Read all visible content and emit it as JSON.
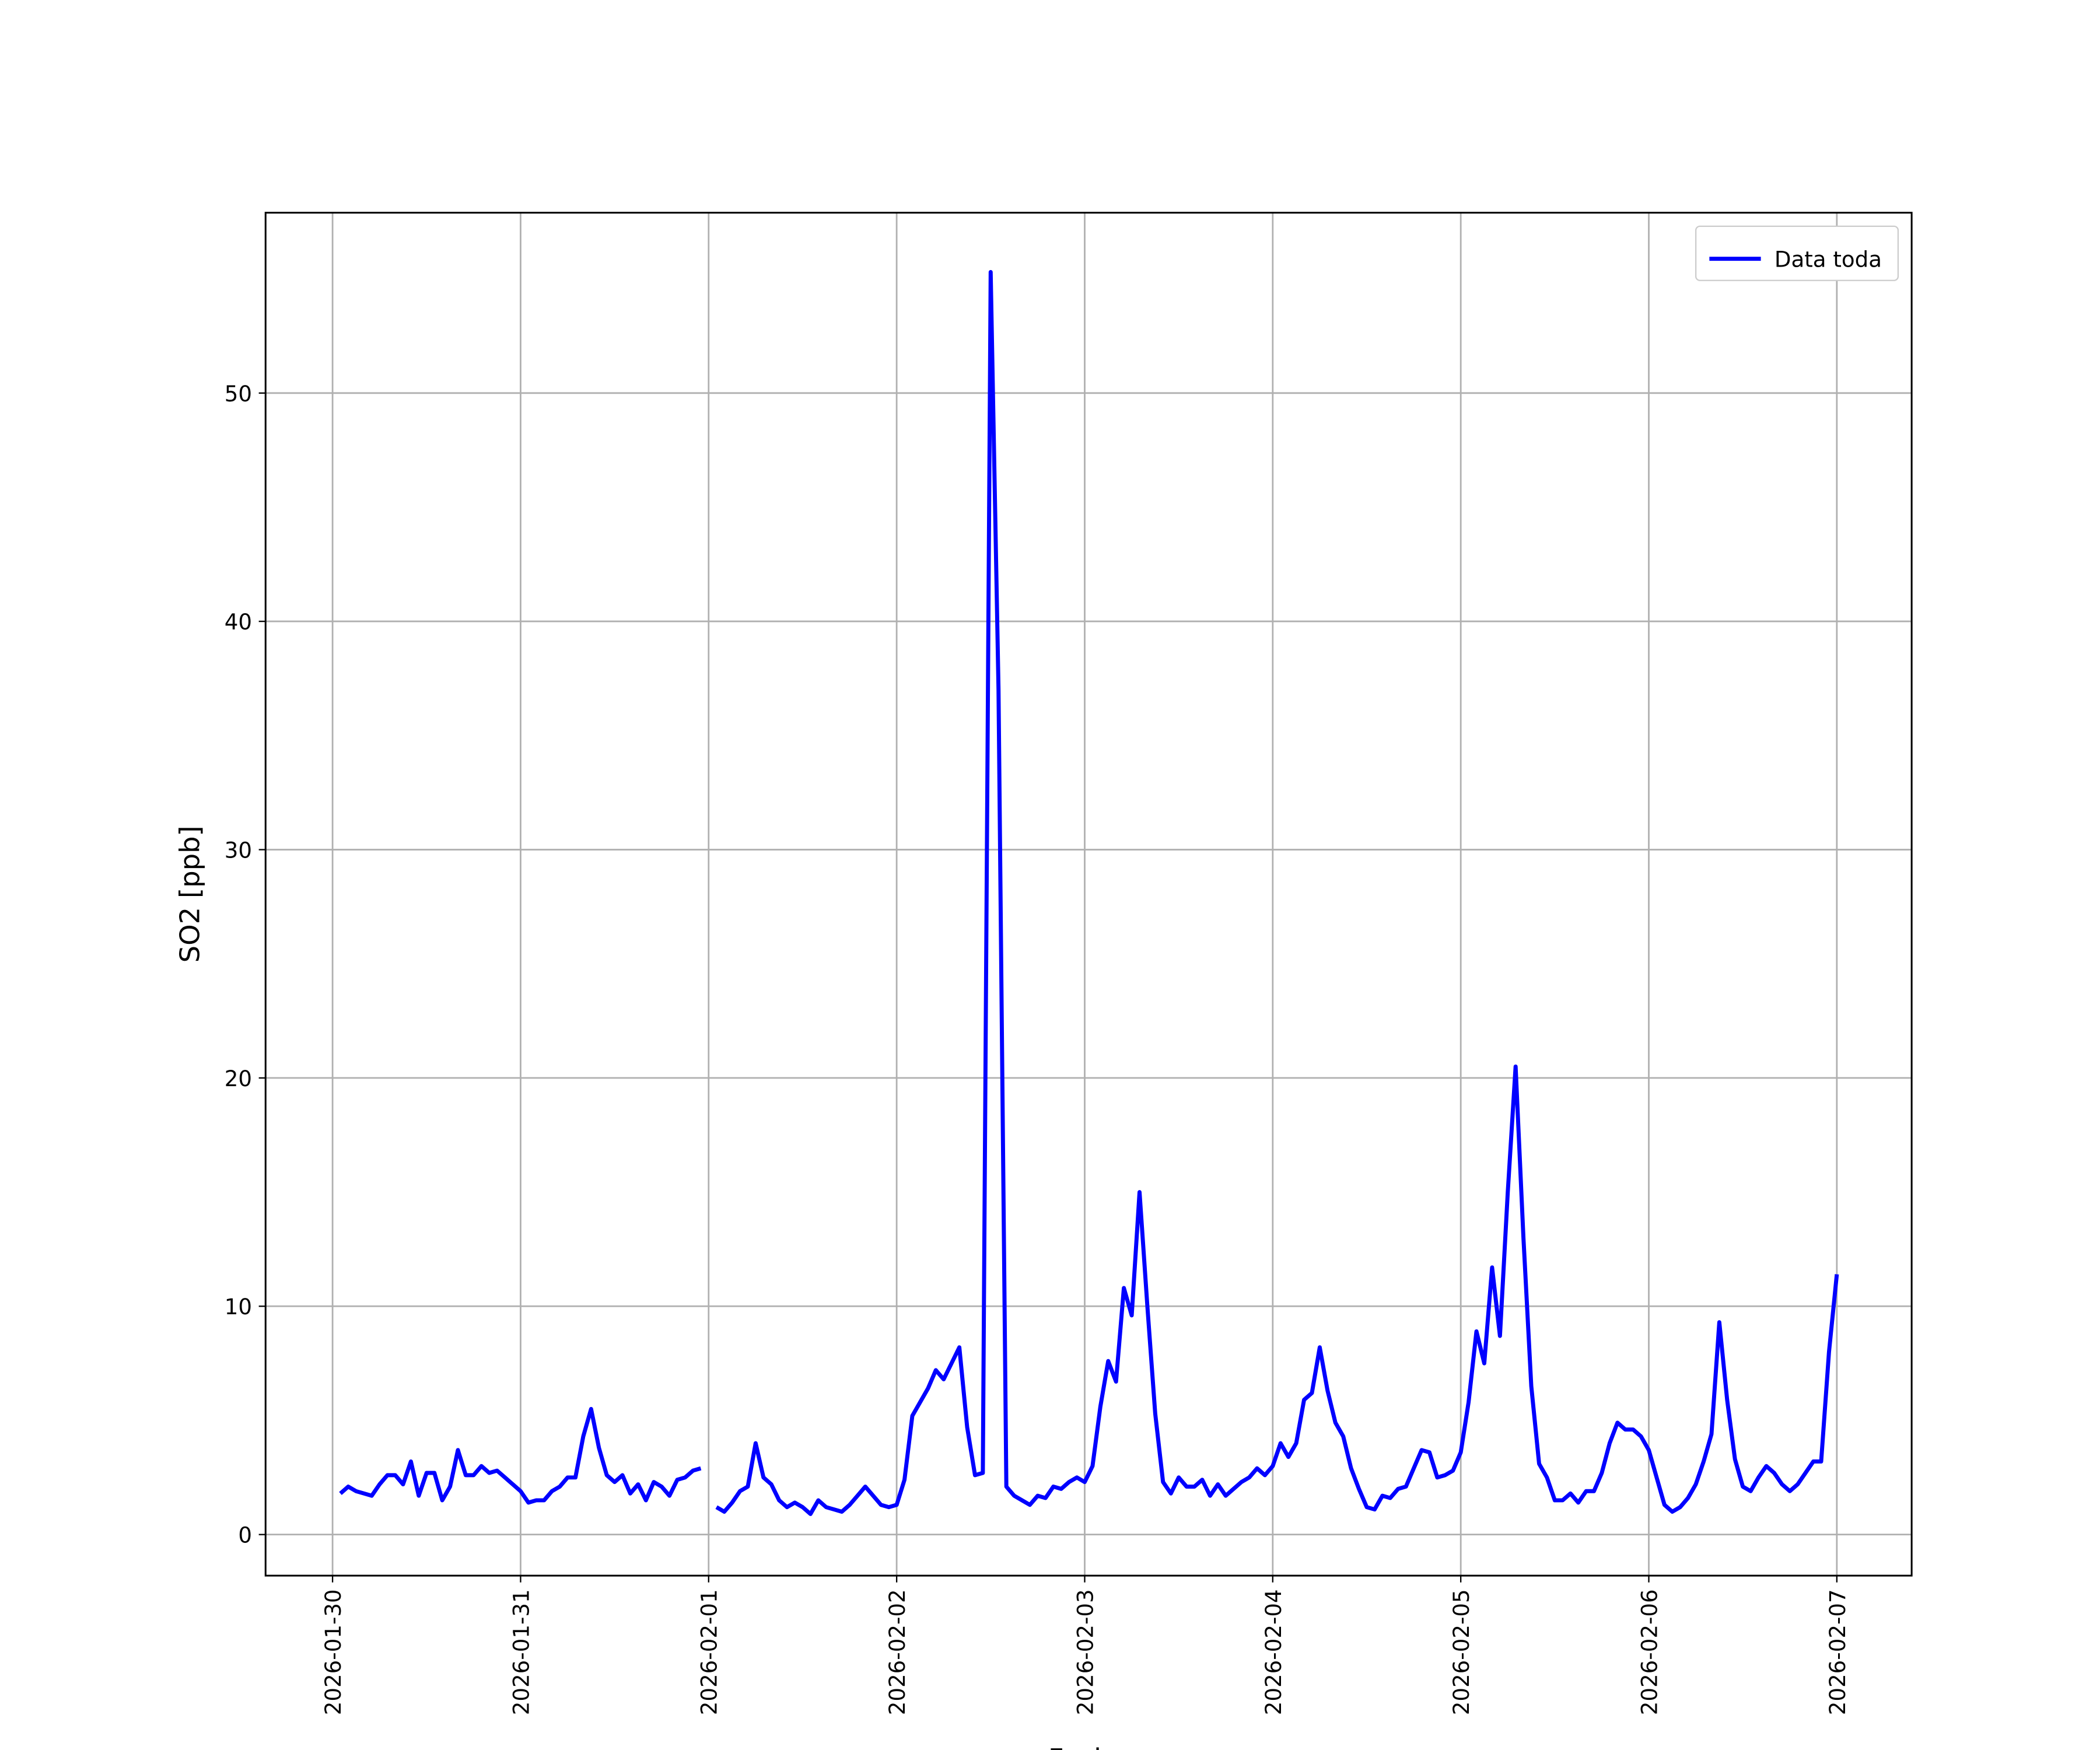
{
  "chart_data": {
    "type": "line",
    "xlabel": "Fecha",
    "ylabel": "SO2 [ppb]",
    "x": [
      "2026-01-30 01:00",
      "2026-01-30 02:00",
      "2026-01-30 03:00",
      "2026-01-30 04:00",
      "2026-01-30 05:00",
      "2026-01-30 06:00",
      "2026-01-30 07:00",
      "2026-01-30 08:00",
      "2026-01-30 09:00",
      "2026-01-30 10:00",
      "2026-01-30 11:00",
      "2026-01-30 12:00",
      "2026-01-30 13:00",
      "2026-01-30 14:00",
      "2026-01-30 15:00",
      "2026-01-30 16:00",
      "2026-01-30 17:00",
      "2026-01-30 18:00",
      "2026-01-30 19:00",
      "2026-01-30 20:00",
      "2026-01-30 21:00",
      "2026-01-30 22:00",
      "2026-01-30 23:00",
      "2026-01-31 00:00",
      "2026-01-31 01:00",
      "2026-01-31 02:00",
      "2026-01-31 03:00",
      "2026-01-31 04:00",
      "2026-01-31 05:00",
      "2026-01-31 06:00",
      "2026-01-31 07:00",
      "2026-01-31 08:00",
      "2026-01-31 09:00",
      "2026-01-31 10:00",
      "2026-01-31 11:00",
      "2026-01-31 12:00",
      "2026-01-31 13:00",
      "2026-01-31 14:00",
      "2026-01-31 15:00",
      "2026-01-31 16:00",
      "2026-01-31 17:00",
      "2026-01-31 18:00",
      "2026-01-31 19:00",
      "2026-01-31 20:00",
      "2026-01-31 21:00",
      "2026-01-31 22:00",
      "2026-01-31 23:00",
      "2026-02-01 00:00",
      "2026-02-01 01:00",
      "2026-02-01 02:00",
      "2026-02-01 03:00",
      "2026-02-01 04:00",
      "2026-02-01 05:00",
      "2026-02-01 06:00",
      "2026-02-01 07:00",
      "2026-02-01 08:00",
      "2026-02-01 09:00",
      "2026-02-01 10:00",
      "2026-02-01 11:00",
      "2026-02-01 12:00",
      "2026-02-01 13:00",
      "2026-02-01 14:00",
      "2026-02-01 15:00",
      "2026-02-01 16:00",
      "2026-02-01 17:00",
      "2026-02-01 18:00",
      "2026-02-01 19:00",
      "2026-02-01 20:00",
      "2026-02-01 21:00",
      "2026-02-01 22:00",
      "2026-02-01 23:00",
      "2026-02-02 00:00",
      "2026-02-02 01:00",
      "2026-02-02 02:00",
      "2026-02-02 03:00",
      "2026-02-02 04:00",
      "2026-02-02 05:00",
      "2026-02-02 06:00",
      "2026-02-02 07:00",
      "2026-02-02 08:00",
      "2026-02-02 09:00",
      "2026-02-02 10:00",
      "2026-02-02 11:00",
      "2026-02-02 12:00",
      "2026-02-02 13:00",
      "2026-02-02 14:00",
      "2026-02-02 15:00",
      "2026-02-02 16:00",
      "2026-02-02 17:00",
      "2026-02-02 18:00",
      "2026-02-02 19:00",
      "2026-02-02 20:00",
      "2026-02-02 21:00",
      "2026-02-02 22:00",
      "2026-02-02 23:00",
      "2026-02-03 00:00",
      "2026-02-03 01:00",
      "2026-02-03 02:00",
      "2026-02-03 03:00",
      "2026-02-03 04:00",
      "2026-02-03 05:00",
      "2026-02-03 06:00",
      "2026-02-03 07:00",
      "2026-02-03 08:00",
      "2026-02-03 09:00",
      "2026-02-03 10:00",
      "2026-02-03 11:00",
      "2026-02-03 12:00",
      "2026-02-03 13:00",
      "2026-02-03 14:00",
      "2026-02-03 15:00",
      "2026-02-03 16:00",
      "2026-02-03 17:00",
      "2026-02-03 18:00",
      "2026-02-03 19:00",
      "2026-02-03 20:00",
      "2026-02-03 21:00",
      "2026-02-03 22:00",
      "2026-02-03 23:00",
      "2026-02-04 00:00",
      "2026-02-04 01:00",
      "2026-02-04 02:00",
      "2026-02-04 03:00",
      "2026-02-04 04:00",
      "2026-02-04 05:00",
      "2026-02-04 06:00",
      "2026-02-04 07:00",
      "2026-02-04 08:00",
      "2026-02-04 09:00",
      "2026-02-04 10:00",
      "2026-02-04 11:00",
      "2026-02-04 12:00",
      "2026-02-04 13:00",
      "2026-02-04 14:00",
      "2026-02-04 15:00",
      "2026-02-04 16:00",
      "2026-02-04 17:00",
      "2026-02-04 18:00",
      "2026-02-04 19:00",
      "2026-02-04 20:00",
      "2026-02-04 21:00",
      "2026-02-04 22:00",
      "2026-02-04 23:00",
      "2026-02-05 00:00",
      "2026-02-05 01:00",
      "2026-02-05 02:00",
      "2026-02-05 03:00",
      "2026-02-05 04:00",
      "2026-02-05 05:00",
      "2026-02-05 06:00",
      "2026-02-05 07:00",
      "2026-02-05 08:00",
      "2026-02-05 09:00",
      "2026-02-05 10:00",
      "2026-02-05 11:00",
      "2026-02-05 12:00",
      "2026-02-05 13:00",
      "2026-02-05 14:00",
      "2026-02-05 15:00",
      "2026-02-05 16:00",
      "2026-02-05 17:00",
      "2026-02-05 18:00",
      "2026-02-05 19:00",
      "2026-02-05 20:00",
      "2026-02-05 21:00",
      "2026-02-05 22:00",
      "2026-02-05 23:00",
      "2026-02-06 00:00",
      "2026-02-06 01:00",
      "2026-02-06 02:00",
      "2026-02-06 03:00",
      "2026-02-06 04:00",
      "2026-02-06 05:00",
      "2026-02-06 06:00",
      "2026-02-06 07:00",
      "2026-02-06 08:00",
      "2026-02-06 09:00",
      "2026-02-06 10:00",
      "2026-02-06 11:00",
      "2026-02-06 12:00",
      "2026-02-06 13:00",
      "2026-02-06 14:00",
      "2026-02-06 15:00",
      "2026-02-06 16:00",
      "2026-02-06 17:00",
      "2026-02-06 18:00",
      "2026-02-06 19:00",
      "2026-02-06 20:00",
      "2026-02-06 21:00",
      "2026-02-06 22:00",
      "2026-02-06 23:00",
      "2026-02-07 00:00"
    ],
    "series": [
      {
        "name": "Data toda",
        "color": "#0000ff",
        "values": [
          1.8,
          2.1,
          1.9,
          1.8,
          1.7,
          2.2,
          2.6,
          2.6,
          2.2,
          3.2,
          1.7,
          2.7,
          2.7,
          1.5,
          2.1,
          3.7,
          2.6,
          2.6,
          3.0,
          2.7,
          2.8,
          2.5,
          2.2,
          1.9,
          1.4,
          1.5,
          1.5,
          1.9,
          2.1,
          2.5,
          2.5,
          4.3,
          5.5,
          3.8,
          2.6,
          2.3,
          2.6,
          1.8,
          2.2,
          1.5,
          2.3,
          2.1,
          1.7,
          2.4,
          2.5,
          2.8,
          2.9,
          null,
          1.2,
          1.0,
          1.4,
          1.9,
          2.1,
          4.0,
          2.5,
          2.2,
          1.5,
          1.2,
          1.4,
          1.2,
          0.9,
          1.5,
          1.2,
          1.1,
          1.0,
          1.3,
          1.7,
          2.1,
          1.7,
          1.3,
          1.2,
          1.3,
          2.4,
          5.2,
          5.8,
          6.4,
          7.2,
          6.8,
          7.5,
          8.2,
          4.7,
          2.6,
          2.7,
          55.3,
          37.0,
          2.1,
          1.7,
          1.5,
          1.3,
          1.7,
          1.6,
          2.1,
          2.0,
          2.3,
          2.5,
          2.3,
          3.0,
          5.6,
          7.6,
          6.7,
          10.8,
          9.6,
          15.0,
          10.0,
          5.3,
          2.3,
          1.8,
          2.5,
          2.1,
          2.1,
          2.4,
          1.7,
          2.2,
          1.7,
          2.0,
          2.3,
          2.5,
          2.9,
          2.6,
          3.0,
          4.0,
          3.4,
          4.0,
          5.9,
          6.2,
          8.2,
          6.3,
          4.9,
          4.3,
          2.9,
          2.0,
          1.2,
          1.1,
          1.7,
          1.6,
          2.0,
          2.1,
          2.9,
          3.7,
          3.6,
          2.5,
          2.6,
          2.8,
          3.6,
          5.8,
          8.9,
          7.5,
          11.7,
          8.7,
          15.0,
          20.5,
          13.0,
          6.5,
          3.1,
          2.5,
          1.5,
          1.5,
          1.8,
          1.4,
          1.9,
          1.9,
          2.7,
          4.0,
          4.9,
          4.6,
          4.6,
          4.3,
          3.7,
          2.5,
          1.3,
          1.0,
          1.2,
          1.6,
          2.2,
          3.2,
          4.4,
          9.3,
          5.9,
          3.3,
          2.1,
          1.9,
          2.5,
          3.0,
          2.7,
          2.2,
          1.9,
          2.2,
          2.7,
          3.2,
          3.2,
          8.0,
          11.4
        ]
      }
    ],
    "xlim": [
      "2026-01-29 15:27",
      "2026-02-07 09:33"
    ],
    "xticks": [
      "2026-01-30",
      "2026-01-31",
      "2026-02-01",
      "2026-02-02",
      "2026-02-03",
      "2026-02-04",
      "2026-02-05",
      "2026-02-06",
      "2026-02-07"
    ],
    "ylim": [
      -1.8,
      57.9
    ],
    "yticks": [
      0,
      10,
      20,
      30,
      40,
      50
    ],
    "grid": true,
    "legend": "upper right"
  }
}
